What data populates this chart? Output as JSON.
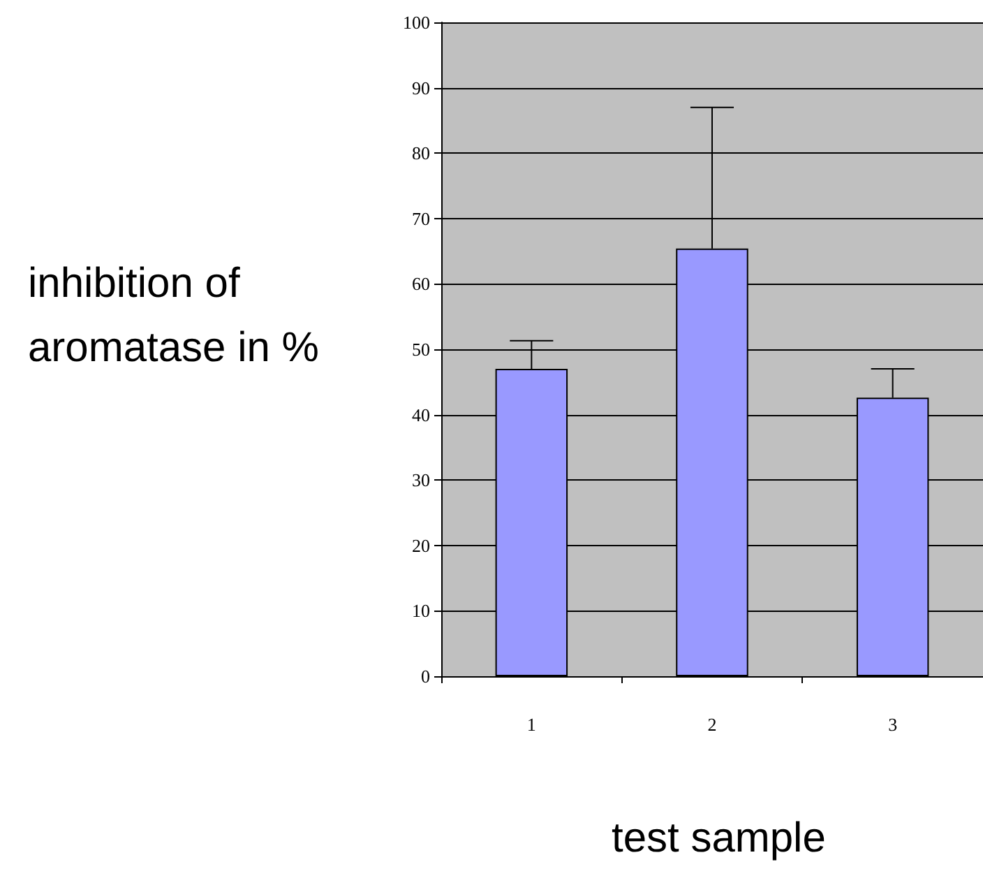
{
  "chart_data": {
    "type": "bar",
    "xlabel": "test sample",
    "ylabel": "inhibition of aromatase in %",
    "categories": [
      "1",
      "2",
      "3"
    ],
    "series": [
      {
        "color": "#9999ff",
        "values": [
          47,
          65.4,
          42.6
        ],
        "errors": [
          [
            47,
            51.3
          ],
          [
            65.4,
            87
          ],
          [
            42.6,
            47
          ]
        ]
      }
    ],
    "ylim": [
      0,
      100
    ],
    "yticks": [
      0,
      10,
      20,
      30,
      40,
      50,
      60,
      70,
      80,
      90,
      100
    ],
    "grid": "y"
  }
}
